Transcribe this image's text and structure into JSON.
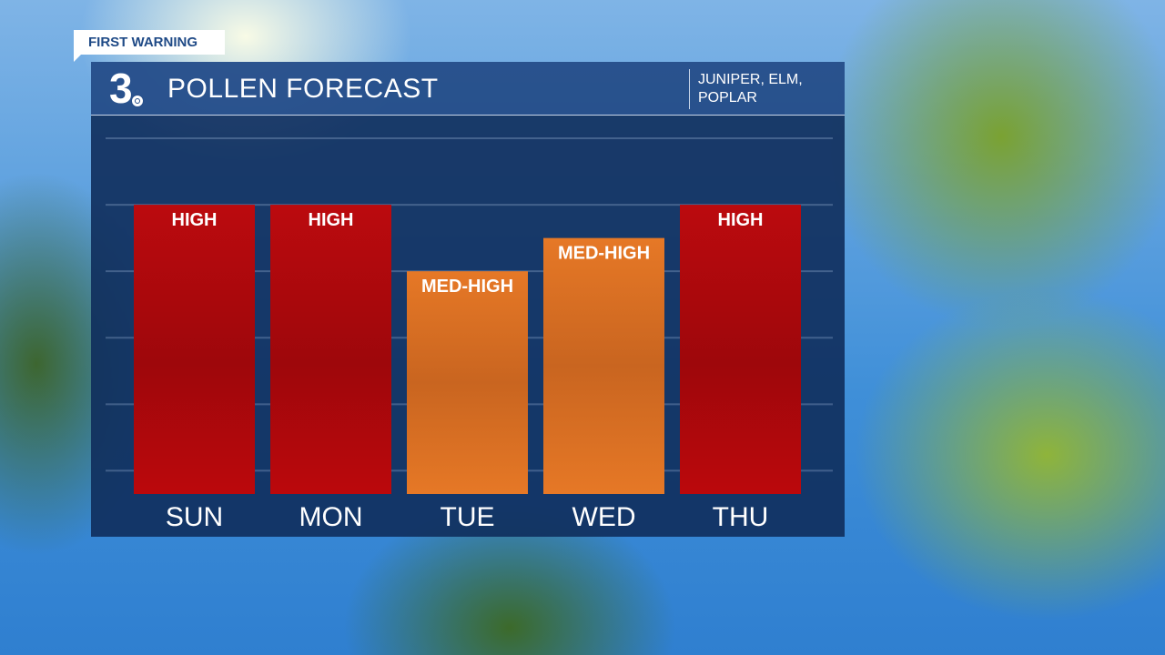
{
  "tag": "FIRST WARNING",
  "header": {
    "logo": "3",
    "title": "POLLEN FORECAST",
    "pollen_types": [
      "JUNIPER, ELM,",
      "POPLAR"
    ]
  },
  "colors": {
    "high": "#b8080c",
    "med_high": "#e57826",
    "header": "#264e8a",
    "panel": "#102e5c"
  },
  "chart_data": {
    "type": "bar",
    "categories": [
      "SUN",
      "MON",
      "TUE",
      "WED",
      "THU"
    ],
    "values": [
      4.35,
      4.35,
      3.35,
      3.85,
      4.35
    ],
    "data_labels": [
      "HIGH",
      "HIGH",
      "MED-HIGH",
      "MED-HIGH",
      "HIGH"
    ],
    "level_colors": [
      "high",
      "high",
      "med_high",
      "med_high",
      "high"
    ],
    "ylim": [
      0,
      5.35
    ],
    "grid": true,
    "title": "POLLEN FORECAST"
  }
}
